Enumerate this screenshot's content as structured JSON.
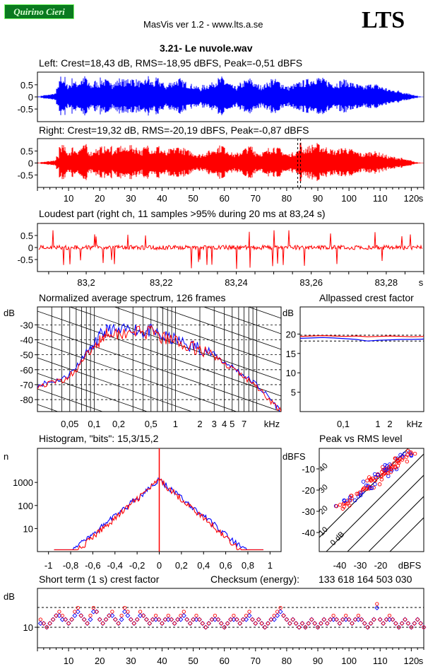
{
  "header": {
    "badge": "Quirino Cieri",
    "app": "MasVis ver 1.2 - www.lts.a.se",
    "logo": "LTS",
    "file": "3.21- Le nuvole.wav"
  },
  "colors": {
    "left": "#0000ff",
    "right": "#ff0000",
    "green_badge": "#0a7a1f"
  },
  "chart_data": [
    {
      "id": "left_waveform",
      "type": "line",
      "title": "Left: Crest=18,43 dB, RMS=-18,95 dBFS, Peak=-0,51 dBFS",
      "ylim": [
        -1,
        1
      ],
      "yticks": [
        "0.5",
        "0",
        "-0.5"
      ],
      "xlim": [
        0,
        124
      ],
      "envelope_peak_by_second": [
        0.02,
        0.05,
        0.08,
        0.1,
        0.12,
        0.15,
        0.4,
        0.9,
        0.85,
        0.55,
        0.6,
        0.8,
        0.65,
        0.7,
        0.8,
        0.9,
        0.6,
        0.55,
        0.7,
        0.65,
        0.8,
        0.75,
        0.7,
        0.85,
        0.6,
        0.7,
        0.8,
        0.75,
        0.7,
        0.85,
        0.8,
        0.75,
        0.7,
        0.6,
        0.75,
        0.9,
        0.7,
        0.65,
        0.8,
        0.7,
        0.6,
        0.5,
        0.65,
        0.7,
        0.75,
        0.8,
        0.7,
        0.65,
        0.6,
        0.55,
        0.5,
        0.45,
        0.4,
        0.5,
        0.55,
        0.6,
        0.7,
        0.75,
        0.8,
        0.85,
        0.7,
        0.6,
        0.5,
        0.45,
        0.5,
        0.6,
        0.7,
        0.75,
        0.8,
        0.65,
        0.55,
        0.5,
        0.55,
        0.6,
        0.7,
        0.8,
        0.75,
        0.7,
        0.6,
        0.5,
        0.45,
        0.5,
        0.55,
        0.6,
        0.65,
        0.7,
        0.75,
        0.8,
        0.85,
        0.9,
        0.85,
        0.8,
        0.75,
        0.7,
        0.65,
        0.6,
        0.65,
        0.7,
        0.75,
        0.7,
        0.65,
        0.6,
        0.55,
        0.5,
        0.45,
        0.5,
        0.55,
        0.6,
        0.55,
        0.5,
        0.45,
        0.4,
        0.35,
        0.3,
        0.3,
        0.28,
        0.25,
        0.2,
        0.18,
        0.15,
        0.1,
        0.05,
        0.02,
        0.01
      ]
    },
    {
      "id": "right_waveform",
      "type": "line",
      "title": "Right: Crest=19,32 dB, RMS=-20,19 dBFS, Peak=-0,87 dBFS",
      "ylim": [
        -1,
        1
      ],
      "yticks": [
        "0.5",
        "0",
        "-0.5"
      ],
      "xlim": [
        0,
        124
      ],
      "xticks": [
        "10",
        "20",
        "30",
        "40",
        "50",
        "60",
        "70",
        "80",
        "90",
        "100",
        "110",
        "120",
        "s"
      ],
      "marker_at_s": 84,
      "envelope_peak_by_second": [
        0.02,
        0.04,
        0.06,
        0.08,
        0.1,
        0.12,
        0.3,
        0.8,
        0.75,
        0.5,
        0.55,
        0.7,
        0.6,
        0.65,
        0.75,
        0.8,
        0.55,
        0.5,
        0.65,
        0.6,
        0.7,
        0.7,
        0.65,
        0.8,
        0.55,
        0.65,
        0.75,
        0.7,
        0.65,
        0.8,
        0.75,
        0.7,
        0.65,
        0.55,
        0.7,
        0.85,
        0.65,
        0.6,
        0.75,
        0.65,
        0.55,
        0.45,
        0.6,
        0.65,
        0.7,
        0.75,
        0.65,
        0.6,
        0.55,
        0.5,
        0.45,
        0.4,
        0.38,
        0.45,
        0.5,
        0.55,
        0.65,
        0.7,
        0.75,
        0.8,
        0.65,
        0.55,
        0.45,
        0.4,
        0.45,
        0.55,
        0.65,
        0.7,
        0.75,
        0.6,
        0.5,
        0.45,
        0.5,
        0.55,
        0.65,
        0.75,
        0.7,
        0.65,
        0.55,
        0.45,
        0.4,
        0.45,
        0.5,
        0.55,
        0.9,
        0.65,
        0.7,
        0.75,
        0.8,
        0.85,
        0.8,
        0.75,
        0.7,
        0.65,
        0.6,
        0.55,
        0.6,
        0.65,
        0.7,
        0.65,
        0.6,
        0.55,
        0.5,
        0.45,
        0.4,
        0.45,
        0.5,
        0.55,
        0.5,
        0.45,
        0.4,
        0.35,
        0.3,
        0.28,
        0.27,
        0.25,
        0.22,
        0.18,
        0.15,
        0.12,
        0.08,
        0.04,
        0.02,
        0.01
      ]
    },
    {
      "id": "loudest_part",
      "type": "line",
      "title": "Loudest part (right ch, 11 samples >95% during 20 ms at 83,24 s)",
      "ylim": [
        -1,
        1
      ],
      "yticks": [
        "0.5",
        "0",
        "-0.5"
      ],
      "xlim": [
        83.187,
        83.29
      ],
      "xticks": [
        "83,2",
        "83,22",
        "83,24",
        "83,26",
        "83,28",
        "s"
      ],
      "xtick_values": [
        83.2,
        83.22,
        83.24,
        83.26,
        83.28
      ]
    },
    {
      "id": "avg_spectrum",
      "type": "line",
      "title": "Normalized average spectrum, 126 frames",
      "ylabel": "dB",
      "xlabel": "kHz",
      "yticks": [
        "-30",
        "-40",
        "-50",
        "-60",
        "-70",
        "-80"
      ],
      "ytick_values": [
        -30,
        -40,
        -50,
        -60,
        -70,
        -80
      ],
      "ylim": [
        -88,
        -18
      ],
      "xticks": [
        "0,05",
        "0,1",
        "0,2",
        "0,5",
        "1",
        "2",
        "3",
        "4",
        "5",
        "7",
        "kHz"
      ],
      "xtick_values": [
        0.05,
        0.1,
        0.2,
        0.5,
        1,
        2,
        3,
        4,
        5,
        7
      ],
      "xlim_khz": [
        0.02,
        20
      ],
      "series": [
        {
          "color": "blue",
          "points": [
            [
              0.02,
              -70
            ],
            [
              0.03,
              -68
            ],
            [
              0.045,
              -65
            ],
            [
              0.06,
              -58
            ],
            [
              0.08,
              -48
            ],
            [
              0.1,
              -44
            ],
            [
              0.12,
              -37
            ],
            [
              0.15,
              -33
            ],
            [
              0.2,
              -35
            ],
            [
              0.3,
              -32
            ],
            [
              0.4,
              -35
            ],
            [
              0.5,
              -34
            ],
            [
              0.7,
              -38
            ],
            [
              1,
              -40
            ],
            [
              1.5,
              -44
            ],
            [
              2,
              -45
            ],
            [
              3,
              -50
            ],
            [
              4,
              -55
            ],
            [
              5,
              -58
            ],
            [
              7,
              -64
            ],
            [
              10,
              -70
            ],
            [
              15,
              -80
            ],
            [
              20,
              -88
            ]
          ]
        },
        {
          "color": "red",
          "points": [
            [
              0.02,
              -71
            ],
            [
              0.03,
              -69
            ],
            [
              0.045,
              -66
            ],
            [
              0.06,
              -60
            ],
            [
              0.08,
              -50
            ],
            [
              0.1,
              -46
            ],
            [
              0.12,
              -39
            ],
            [
              0.15,
              -34
            ],
            [
              0.2,
              -36
            ],
            [
              0.3,
              -33
            ],
            [
              0.4,
              -36
            ],
            [
              0.5,
              -35
            ],
            [
              0.7,
              -39
            ],
            [
              1,
              -41
            ],
            [
              1.5,
              -45
            ],
            [
              2,
              -46
            ],
            [
              3,
              -51
            ],
            [
              4,
              -56
            ],
            [
              5,
              -59
            ],
            [
              7,
              -65
            ],
            [
              10,
              -71
            ],
            [
              15,
              -81
            ],
            [
              20,
              -88
            ]
          ]
        }
      ]
    },
    {
      "id": "allpassed_crest",
      "type": "line",
      "title": "Allpassed crest factor",
      "ylabel": "dB",
      "xlabel": "kHz",
      "yticks": [
        "20",
        "15",
        "10",
        "5"
      ],
      "ytick_values": [
        20,
        15,
        10,
        5
      ],
      "ylim": [
        0,
        27
      ],
      "xticks": [
        "0,1",
        "1",
        "2",
        "kHz"
      ],
      "series": [
        {
          "color": "red",
          "values": [
            19.4,
            19.5,
            19.6,
            19.5,
            19.4,
            19.5,
            19.3,
            19.4,
            19.5,
            19.4,
            19.3,
            19.4
          ]
        },
        {
          "color": "blue",
          "values": [
            18.9,
            19.0,
            19.1,
            19.0,
            18.8,
            18.6,
            18.2,
            18.4,
            18.5,
            18.6,
            18.6,
            18.7
          ]
        }
      ]
    },
    {
      "id": "histogram",
      "type": "bar",
      "title": "Histogram, \"bits\": 15,3/15,2",
      "ylabel": "n",
      "yscale": "log",
      "yticks": [
        "1000",
        "100",
        "10"
      ],
      "ytick_values": [
        1000,
        100,
        10
      ],
      "xlim": [
        -1.1,
        1.1
      ],
      "xticks": [
        "-1",
        "-0,8",
        "-0,6",
        "-0,4",
        "-0,2",
        "0",
        "0,2",
        "0,4",
        "0,6",
        "0,8",
        "1"
      ],
      "peak_count_at_zero": 1300
    },
    {
      "id": "peak_vs_rms",
      "type": "scatter",
      "title": "Peak vs RMS level",
      "ylabel": "dBFS",
      "xlabel": "dBFS",
      "yticks": [
        "-10",
        "-20",
        "-30",
        "-40"
      ],
      "xticks": [
        "-40",
        "-30",
        "-20",
        "dBFS"
      ],
      "diag_labels": [
        "40",
        "30",
        "20",
        "10",
        "0 dB"
      ]
    },
    {
      "id": "short_term_crest",
      "type": "scatter",
      "title": "Short term (1 s) crest factor",
      "checksum_label": "Checksum (energy):",
      "checksum_value": "133 618 164 503 030",
      "ylabel": "dB",
      "yticks": [
        "10"
      ],
      "xticks": [
        "10",
        "20",
        "30",
        "40",
        "50",
        "60",
        "70",
        "80",
        "90",
        "100",
        "110",
        "120",
        "s"
      ],
      "values_red": [
        12,
        11,
        10,
        11,
        12,
        13,
        14,
        13,
        12,
        11,
        12,
        14,
        15,
        13,
        12,
        11,
        13,
        15,
        14,
        12,
        11,
        12,
        13,
        14,
        12,
        11,
        13,
        15,
        14,
        12,
        11,
        12,
        14,
        13,
        12,
        11,
        12,
        13,
        12,
        11,
        12,
        13,
        12,
        11,
        12,
        13,
        14,
        12,
        11,
        12,
        13,
        12,
        11,
        10,
        11,
        12,
        13,
        12,
        11,
        10,
        11,
        12,
        13,
        12,
        11,
        12,
        13,
        14,
        12,
        11,
        12,
        11,
        10,
        11,
        12,
        13,
        14,
        15,
        13,
        12,
        11,
        12,
        11,
        10,
        11,
        10,
        11,
        12,
        11,
        10,
        11,
        12,
        11,
        12,
        13,
        12,
        11,
        12,
        13,
        12,
        11,
        12,
        13,
        12,
        11,
        10,
        11,
        12,
        16,
        12,
        11,
        12,
        13,
        12,
        11,
        10,
        11,
        12,
        11,
        10,
        11,
        12,
        11,
        10
      ],
      "values_blue": [
        11,
        11,
        10,
        11,
        12,
        13,
        13,
        12,
        12,
        11,
        12,
        13,
        14,
        13,
        12,
        11,
        12,
        14,
        14,
        12,
        11,
        12,
        13,
        13,
        12,
        11,
        12,
        14,
        13,
        12,
        11,
        12,
        13,
        13,
        12,
        11,
        12,
        12,
        12,
        11,
        12,
        12,
        12,
        11,
        12,
        12,
        13,
        12,
        11,
        12,
        12,
        12,
        11,
        10,
        11,
        12,
        12,
        12,
        11,
        10,
        11,
        12,
        12,
        12,
        11,
        12,
        12,
        13,
        12,
        11,
        12,
        11,
        10,
        11,
        12,
        12,
        13,
        14,
        13,
        12,
        11,
        12,
        11,
        10,
        11,
        10,
        11,
        12,
        11,
        10,
        11,
        12,
        11,
        12,
        12,
        12,
        11,
        12,
        12,
        12,
        11,
        12,
        12,
        12,
        11,
        10,
        11,
        12,
        15,
        12,
        11,
        12,
        12,
        12,
        11,
        10,
        11,
        12,
        11,
        10,
        11,
        12,
        11,
        10
      ]
    }
  ]
}
